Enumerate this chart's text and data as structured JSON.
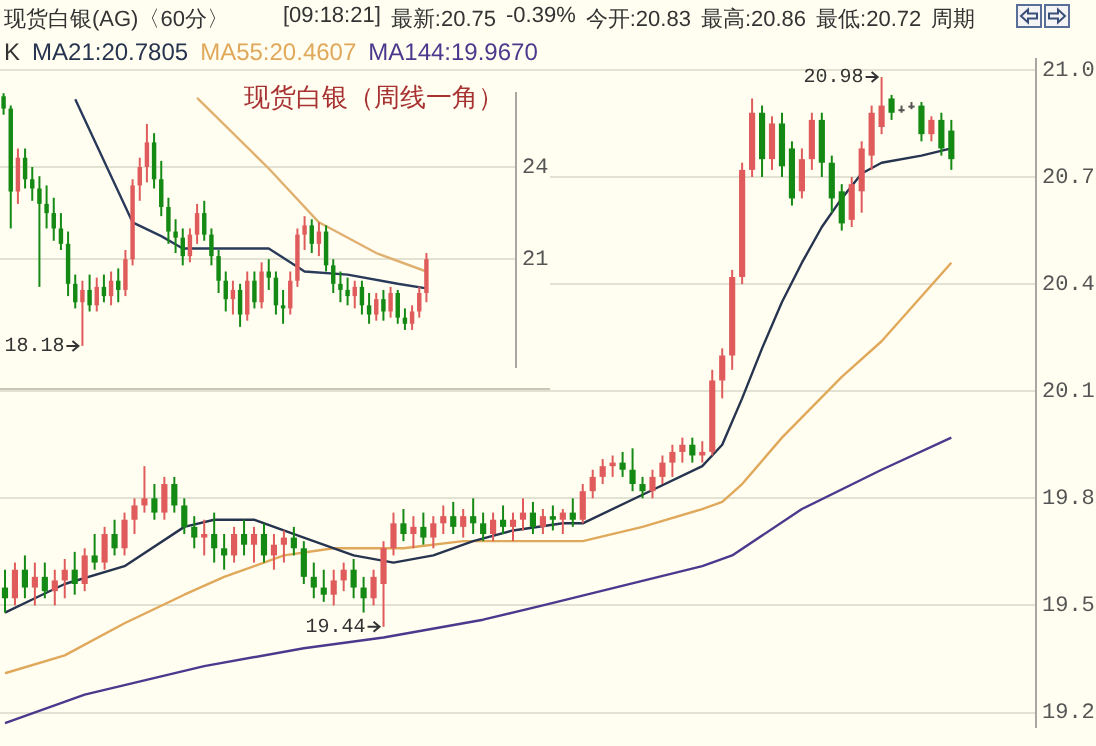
{
  "chart_data": [
    {
      "type": "candlestick",
      "title": "现货白银(AG)〈60分〉",
      "annotations": [
        "[09:18:21]",
        "最新:20.75",
        "-0.39%",
        "今开:20.83",
        "最高:20.86",
        "最低:20.72",
        "周期",
        "19.44",
        "20.98"
      ],
      "legend_title": "K",
      "legend": "top left",
      "grid": "y",
      "ylim": [
        19.16,
        21.03
      ],
      "yticks": [
        19.2,
        19.5,
        19.8,
        20.1,
        20.4,
        20.7,
        {
          "value": 21,
          "label": "21.0"
        }
      ],
      "categories": [
        null,
        null,
        null,
        null,
        null,
        null,
        null,
        null,
        null,
        null,
        null,
        null,
        null,
        null,
        null,
        null,
        null,
        null,
        null,
        null,
        null,
        null,
        null,
        null,
        null,
        null,
        null,
        null,
        null,
        null,
        null,
        null,
        null,
        null,
        null,
        null,
        null,
        null,
        null,
        null,
        null,
        null,
        null,
        null,
        null,
        null,
        null,
        null,
        null,
        null,
        null,
        null,
        null,
        null,
        null,
        null,
        null,
        null,
        null,
        null,
        null,
        null,
        null,
        null,
        null,
        null,
        null,
        null,
        null,
        null,
        null,
        null,
        null,
        null,
        null,
        null,
        null,
        null,
        null,
        null,
        null,
        null,
        null,
        null,
        null,
        null,
        null,
        null,
        null,
        null,
        null,
        null,
        null,
        null,
        null,
        null,
        null,
        null,
        null,
        null,
        null,
        null,
        null,
        null
      ],
      "ohlc": [
        [
          19.55,
          19.6,
          19.48,
          19.52
        ],
        [
          19.52,
          19.62,
          19.5,
          19.6
        ],
        [
          19.6,
          19.64,
          19.52,
          19.55
        ],
        [
          19.55,
          19.62,
          19.5,
          19.58
        ],
        [
          19.58,
          19.62,
          19.52,
          19.54
        ],
        [
          19.54,
          19.6,
          19.5,
          19.57
        ],
        [
          19.57,
          19.63,
          19.52,
          19.6
        ],
        [
          19.6,
          19.65,
          19.53,
          19.56
        ],
        [
          19.56,
          19.66,
          19.54,
          19.64
        ],
        [
          19.64,
          19.7,
          19.6,
          19.62
        ],
        [
          19.62,
          19.72,
          19.6,
          19.7
        ],
        [
          19.7,
          19.74,
          19.64,
          19.66
        ],
        [
          19.66,
          19.76,
          19.64,
          19.74
        ],
        [
          19.74,
          19.8,
          19.7,
          19.78
        ],
        [
          19.78,
          19.89,
          19.76,
          19.8
        ],
        [
          19.8,
          19.84,
          19.74,
          19.76
        ],
        [
          19.76,
          19.86,
          19.74,
          19.84
        ],
        [
          19.84,
          19.86,
          19.76,
          19.78
        ],
        [
          19.78,
          19.8,
          19.7,
          19.72
        ],
        [
          19.72,
          19.75,
          19.66,
          19.69
        ],
        [
          19.69,
          19.74,
          19.64,
          19.7
        ],
        [
          19.7,
          19.76,
          19.62,
          19.66
        ],
        [
          19.66,
          19.7,
          19.6,
          19.64
        ],
        [
          19.64,
          19.72,
          19.62,
          19.7
        ],
        [
          19.7,
          19.74,
          19.64,
          19.67
        ],
        [
          19.67,
          19.72,
          19.62,
          19.7
        ],
        [
          19.7,
          19.73,
          19.62,
          19.64
        ],
        [
          19.64,
          19.7,
          19.6,
          19.67
        ],
        [
          19.67,
          19.71,
          19.62,
          19.69
        ],
        [
          19.69,
          19.72,
          19.64,
          19.66
        ],
        [
          19.66,
          19.68,
          19.56,
          19.58
        ],
        [
          19.58,
          19.62,
          19.52,
          19.55
        ],
        [
          19.55,
          19.6,
          19.51,
          19.53
        ],
        [
          19.53,
          19.6,
          19.5,
          19.57
        ],
        [
          19.57,
          19.62,
          19.54,
          19.6
        ],
        [
          19.6,
          19.63,
          19.52,
          19.55
        ],
        [
          19.55,
          19.58,
          19.48,
          19.52
        ],
        [
          19.52,
          19.6,
          19.5,
          19.58
        ],
        [
          19.56,
          19.68,
          19.44,
          19.66
        ],
        [
          19.66,
          19.76,
          19.64,
          19.73
        ],
        [
          19.73,
          19.77,
          19.68,
          19.7
        ],
        [
          19.7,
          19.75,
          19.66,
          19.72
        ],
        [
          19.72,
          19.76,
          19.67,
          19.69
        ],
        [
          19.69,
          19.75,
          19.66,
          19.73
        ],
        [
          19.73,
          19.78,
          19.7,
          19.75
        ],
        [
          19.75,
          19.79,
          19.7,
          19.72
        ],
        [
          19.72,
          19.77,
          19.69,
          19.75
        ],
        [
          19.75,
          19.8,
          19.7,
          19.73
        ],
        [
          19.73,
          19.76,
          19.68,
          19.7
        ],
        [
          19.7,
          19.76,
          19.68,
          19.74
        ],
        [
          19.74,
          19.78,
          19.7,
          19.72
        ],
        [
          19.72,
          19.76,
          19.68,
          19.74
        ],
        [
          19.74,
          19.8,
          19.71,
          19.76
        ],
        [
          19.76,
          19.79,
          19.7,
          19.72
        ],
        [
          19.72,
          19.77,
          19.7,
          19.75
        ],
        [
          19.75,
          19.78,
          19.71,
          19.74
        ],
        [
          19.74,
          19.77,
          19.7,
          19.76
        ],
        [
          19.76,
          19.8,
          19.72,
          19.74
        ],
        [
          19.74,
          19.84,
          19.73,
          19.82
        ],
        [
          19.82,
          19.88,
          19.8,
          19.86
        ],
        [
          19.86,
          19.91,
          19.84,
          19.89
        ],
        [
          19.89,
          19.92,
          19.86,
          19.9
        ],
        [
          19.9,
          19.93,
          19.86,
          19.88
        ],
        [
          19.88,
          19.94,
          19.82,
          19.84
        ],
        [
          19.84,
          19.86,
          19.8,
          19.82
        ],
        [
          19.82,
          19.88,
          19.8,
          19.86
        ],
        [
          19.86,
          19.92,
          19.84,
          19.9
        ],
        [
          19.9,
          19.95,
          19.86,
          19.93
        ],
        [
          19.93,
          19.97,
          19.9,
          19.95
        ],
        [
          19.95,
          19.97,
          19.9,
          19.92
        ],
        [
          19.92,
          19.96,
          19.9,
          19.93
        ],
        [
          19.93,
          20.16,
          19.92,
          20.13
        ],
        [
          20.13,
          20.22,
          20.08,
          20.2
        ],
        [
          20.2,
          20.44,
          20.16,
          20.42
        ],
        [
          20.42,
          20.74,
          20.4,
          20.72
        ],
        [
          20.72,
          20.92,
          20.7,
          20.88
        ],
        [
          20.88,
          20.9,
          20.7,
          20.75
        ],
        [
          20.75,
          20.87,
          20.72,
          20.85
        ],
        [
          20.85,
          20.88,
          20.7,
          20.73
        ],
        [
          20.78,
          20.8,
          20.62,
          20.64
        ],
        [
          20.66,
          20.78,
          20.64,
          20.75
        ],
        [
          20.75,
          20.88,
          20.72,
          20.86
        ],
        [
          20.86,
          20.88,
          20.7,
          20.74
        ],
        [
          20.74,
          20.76,
          20.6,
          20.64
        ],
        [
          20.66,
          20.68,
          20.55,
          20.57
        ],
        [
          20.58,
          20.7,
          20.56,
          20.68
        ],
        [
          20.66,
          20.8,
          20.6,
          20.78
        ],
        [
          20.76,
          20.9,
          20.72,
          20.88
        ],
        [
          20.84,
          20.98,
          20.82,
          20.9
        ],
        [
          20.92,
          20.93,
          20.86,
          20.88
        ],
        [
          20.89,
          20.9,
          20.88,
          20.89
        ],
        [
          20.9,
          20.91,
          20.89,
          20.9
        ],
        [
          20.9,
          20.91,
          20.8,
          20.82
        ],
        [
          20.82,
          20.87,
          20.8,
          20.86
        ],
        [
          20.86,
          20.88,
          20.76,
          20.78
        ],
        [
          20.83,
          20.86,
          20.72,
          20.75
        ],
        null,
        null,
        null,
        null,
        null,
        null,
        null,
        null
      ],
      "series": [
        {
          "name": "MA21:20.7805",
          "type": "line",
          "color": "#27344f",
          "values": [
            19.48,
            null,
            null,
            19.52,
            null,
            null,
            19.56,
            null,
            null,
            null,
            null,
            null,
            19.61,
            null,
            null,
            null,
            null,
            null,
            19.72,
            null,
            null,
            19.74,
            null,
            null,
            null,
            19.74,
            null,
            null,
            null,
            null,
            19.69,
            null,
            null,
            null,
            null,
            19.64,
            null,
            null,
            null,
            19.62,
            null,
            null,
            null,
            19.64,
            null,
            null,
            null,
            19.68,
            null,
            null,
            null,
            19.71,
            null,
            null,
            null,
            null,
            19.73,
            null,
            19.73,
            null,
            null,
            null,
            null,
            null,
            19.81,
            null,
            null,
            null,
            null,
            null,
            19.89,
            null,
            19.95,
            null,
            20.08,
            null,
            20.22,
            null,
            20.35,
            null,
            20.46,
            null,
            20.56,
            null,
            20.64,
            null,
            20.71,
            null,
            20.74,
            null,
            null,
            null,
            20.76,
            null,
            null,
            20.78,
            null,
            null,
            null,
            null,
            null,
            null,
            null,
            null
          ]
        },
        {
          "name": "MA55:20.4607",
          "type": "line",
          "color": "#e0a85a",
          "values": [
            19.31,
            null,
            null,
            null,
            null,
            null,
            19.36,
            null,
            null,
            null,
            null,
            null,
            19.45,
            null,
            null,
            null,
            null,
            null,
            19.53,
            null,
            null,
            null,
            19.58,
            null,
            null,
            null,
            null,
            null,
            19.64,
            null,
            null,
            null,
            null,
            19.66,
            null,
            null,
            null,
            null,
            null,
            null,
            19.66,
            null,
            null,
            null,
            null,
            null,
            19.68,
            null,
            null,
            null,
            null,
            null,
            null,
            null,
            19.68,
            null,
            null,
            null,
            19.68,
            null,
            null,
            null,
            null,
            null,
            19.72,
            null,
            null,
            null,
            null,
            null,
            19.77,
            null,
            19.79,
            null,
            19.84,
            null,
            null,
            null,
            19.97,
            null,
            null,
            null,
            null,
            null,
            20.14,
            null,
            null,
            null,
            20.24,
            null,
            null,
            null,
            null,
            null,
            null,
            20.46,
            null,
            null,
            null,
            null,
            null,
            null,
            null,
            null
          ]
        },
        {
          "name": "MA144:19.9670",
          "type": "line",
          "color": "#4a3a8e",
          "values": [
            19.17,
            null,
            null,
            null,
            null,
            null,
            null,
            null,
            19.25,
            null,
            null,
            null,
            null,
            null,
            null,
            null,
            null,
            null,
            null,
            null,
            19.33,
            null,
            null,
            null,
            null,
            null,
            null,
            null,
            null,
            null,
            19.38,
            null,
            null,
            null,
            null,
            null,
            null,
            null,
            19.41,
            null,
            null,
            null,
            null,
            null,
            null,
            null,
            null,
            null,
            19.46,
            null,
            null,
            null,
            null,
            null,
            19.5,
            null,
            null,
            null,
            null,
            null,
            null,
            null,
            null,
            null,
            null,
            null,
            null,
            null,
            null,
            null,
            19.61,
            null,
            null,
            19.64,
            null,
            null,
            null,
            null,
            null,
            null,
            19.77,
            null,
            null,
            null,
            null,
            null,
            null,
            null,
            19.88,
            null,
            null,
            null,
            null,
            null,
            null,
            19.97,
            null,
            null,
            null,
            null,
            null,
            null,
            null,
            null
          ]
        }
      ]
    },
    {
      "type": "candlestick",
      "title": "现货白银（周线一角）",
      "grid": "y",
      "annotations": [
        "18.18"
      ],
      "ylim": [
        17.5,
        26.4
      ],
      "yticks": [
        24,
        21
      ],
      "categories": [
        null,
        null,
        null,
        null,
        null,
        null,
        null,
        null,
        null,
        null,
        null,
        null,
        null,
        null,
        null,
        null,
        null,
        null,
        null,
        null,
        null,
        null,
        null,
        null,
        null,
        null,
        null,
        null,
        null,
        null,
        null,
        null,
        null,
        null,
        null,
        null,
        null,
        null,
        null,
        null,
        null,
        null,
        null,
        null,
        null,
        null,
        null,
        null,
        null,
        null,
        null,
        null,
        null,
        null,
        null,
        null,
        null,
        null,
        null,
        null,
        null,
        null,
        null,
        null,
        null,
        null,
        null,
        null,
        null,
        null,
        null,
        null
      ],
      "ohlc": [
        [
          26.3,
          26.4,
          25.7,
          25.9
        ],
        [
          25.9,
          26.0,
          22.0,
          23.2
        ],
        [
          23.2,
          24.6,
          22.8,
          24.3
        ],
        [
          24.3,
          24.6,
          23.3,
          23.6
        ],
        [
          23.6,
          24.0,
          22.9,
          23.3
        ],
        [
          23.3,
          23.7,
          20.1,
          22.8
        ],
        [
          22.8,
          23.4,
          22.0,
          22.5
        ],
        [
          22.5,
          23.0,
          21.6,
          22.0
        ],
        [
          22.0,
          22.5,
          21.3,
          21.5
        ],
        [
          21.5,
          21.9,
          19.8,
          20.2
        ],
        [
          20.2,
          20.5,
          19.4,
          19.6
        ],
        [
          19.6,
          20.3,
          18.18,
          20.0
        ],
        [
          20.0,
          20.5,
          19.3,
          19.5
        ],
        [
          19.5,
          20.4,
          19.3,
          20.1
        ],
        [
          20.1,
          20.5,
          19.6,
          19.8
        ],
        [
          19.8,
          20.6,
          19.5,
          20.3
        ],
        [
          20.3,
          20.7,
          19.6,
          20.0
        ],
        [
          20.0,
          21.3,
          19.8,
          21.0
        ],
        [
          21.0,
          23.6,
          20.8,
          23.4
        ],
        [
          23.4,
          24.3,
          22.9,
          24.0
        ],
        [
          24.0,
          25.4,
          23.5,
          24.8
        ],
        [
          24.8,
          25.1,
          23.3,
          23.6
        ],
        [
          23.6,
          24.2,
          22.4,
          22.7
        ],
        [
          22.7,
          23.0,
          21.5,
          21.9
        ],
        [
          21.9,
          22.3,
          21.2,
          21.7
        ],
        [
          21.7,
          22.0,
          20.8,
          21.1
        ],
        [
          21.1,
          22.0,
          20.9,
          21.8
        ],
        [
          21.8,
          22.8,
          21.5,
          22.5
        ],
        [
          22.5,
          22.9,
          21.6,
          21.8
        ],
        [
          21.8,
          22.0,
          20.8,
          21.1
        ],
        [
          21.1,
          21.3,
          19.9,
          20.3
        ],
        [
          20.3,
          20.6,
          19.3,
          19.7
        ],
        [
          19.7,
          20.3,
          19.2,
          20.0
        ],
        [
          20.0,
          20.2,
          18.8,
          19.2
        ],
        [
          19.2,
          20.6,
          19.0,
          20.3
        ],
        [
          20.3,
          20.6,
          19.4,
          19.6
        ],
        [
          19.6,
          20.9,
          19.4,
          20.6
        ],
        [
          20.6,
          21.0,
          20.0,
          20.4
        ],
        [
          20.4,
          20.6,
          19.2,
          19.5
        ],
        [
          19.5,
          20.0,
          18.9,
          19.4
        ],
        [
          19.4,
          20.6,
          19.2,
          20.3
        ],
        [
          20.3,
          22.0,
          20.1,
          21.8
        ],
        [
          21.8,
          22.4,
          21.3,
          22.1
        ],
        [
          22.1,
          22.3,
          21.2,
          21.5
        ],
        [
          21.5,
          22.2,
          21.1,
          21.9
        ],
        [
          21.9,
          22.1,
          20.6,
          20.8
        ],
        [
          20.8,
          21.0,
          19.9,
          20.2
        ],
        [
          20.2,
          20.6,
          19.6,
          20.0
        ],
        [
          20.0,
          20.4,
          19.5,
          19.8
        ],
        [
          19.8,
          20.3,
          19.4,
          20.1
        ],
        [
          20.1,
          20.3,
          19.2,
          19.5
        ],
        [
          19.5,
          19.9,
          18.9,
          19.2
        ],
        [
          19.2,
          19.9,
          19.0,
          19.7
        ],
        [
          19.7,
          20.0,
          19.0,
          19.3
        ],
        [
          19.3,
          20.1,
          19.1,
          19.9
        ],
        [
          19.9,
          20.0,
          18.9,
          19.1
        ],
        [
          19.1,
          19.4,
          18.7,
          18.9
        ],
        [
          18.9,
          19.5,
          18.7,
          19.3
        ],
        [
          19.3,
          20.1,
          19.1,
          19.9
        ],
        [
          19.9,
          21.2,
          19.6,
          21.0
        ],
        null,
        null,
        null,
        null,
        null,
        null,
        null,
        null,
        null,
        null,
        null,
        null
      ],
      "series": [
        {
          "type": "line",
          "color": "#2a3a5a",
          "values": [
            null,
            null,
            null,
            null,
            null,
            null,
            null,
            null,
            null,
            null,
            26.2,
            null,
            null,
            null,
            null,
            null,
            null,
            null,
            22.2,
            null,
            null,
            null,
            21.75,
            null,
            null,
            21.35,
            null,
            null,
            null,
            null,
            null,
            null,
            null,
            null,
            null,
            null,
            null,
            21.35,
            null,
            null,
            null,
            null,
            20.6,
            null,
            null,
            null,
            null,
            null,
            20.5,
            null,
            null,
            null,
            null,
            null,
            null,
            20.2,
            null,
            null,
            null,
            20.05,
            null,
            null,
            null,
            null,
            null,
            null,
            null,
            null,
            null,
            null,
            null,
            null
          ]
        },
        {
          "type": "line",
          "color": "#e0b070",
          "values": [
            null,
            null,
            null,
            null,
            null,
            null,
            null,
            null,
            null,
            null,
            null,
            null,
            null,
            null,
            null,
            null,
            null,
            null,
            null,
            null,
            null,
            null,
            null,
            null,
            null,
            null,
            null,
            26.25,
            null,
            null,
            null,
            null,
            null,
            null,
            null,
            null,
            null,
            23.95,
            null,
            null,
            null,
            null,
            null,
            null,
            22.2,
            null,
            null,
            null,
            null,
            null,
            null,
            null,
            21.2,
            null,
            null,
            null,
            null,
            null,
            null,
            20.6,
            null,
            null,
            null,
            null,
            null,
            null,
            null,
            null,
            null,
            null,
            null,
            null
          ]
        }
      ]
    }
  ]
}
